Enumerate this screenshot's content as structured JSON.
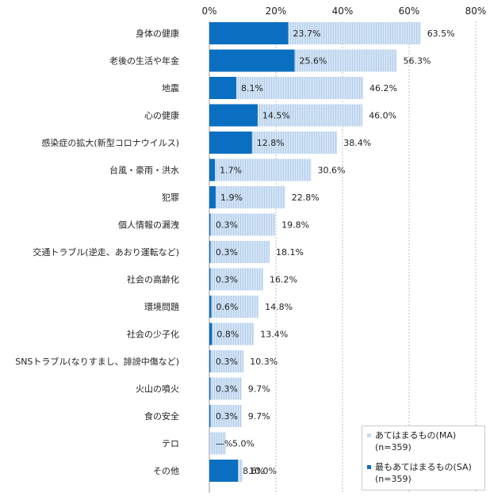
{
  "chart_data": {
    "type": "bar",
    "orientation": "horizontal",
    "xlim": [
      0,
      80
    ],
    "tick_labels": [
      "0%",
      "20%",
      "40%",
      "60%",
      "80%"
    ],
    "categories": [
      "身体の健康",
      "老後の生活や年金",
      "地震",
      "心の健康",
      "感染症の拡大(新型コロナウイルス)",
      "台風・豪雨・洪水",
      "犯罪",
      "個人情報の漏洩",
      "交通トラブル(逆走、あおり運転など)",
      "社会の高齢化",
      "環境問題",
      "社会の少子化",
      "SNSトラブル(なりすまし、誹謗中傷など)",
      "火山の噴火",
      "食の安全",
      "テロ",
      "その他"
    ],
    "series": [
      {
        "name": "あてはまるもの(MA) (n=359)",
        "color": "#c6dcf2",
        "values": [
          63.5,
          56.3,
          46.2,
          46.0,
          38.4,
          30.6,
          22.8,
          19.8,
          18.1,
          16.2,
          14.8,
          13.4,
          10.3,
          9.7,
          9.7,
          5.0,
          10.0
        ],
        "labels": [
          "63.5%",
          "56.3%",
          "46.2%",
          "46.0%",
          "38.4%",
          "30.6%",
          "22.8%",
          "19.8%",
          "18.1%",
          "16.2%",
          "14.8%",
          "13.4%",
          "10.3%",
          "9.7%",
          "9.7%",
          "5.0%",
          "10.0%"
        ]
      },
      {
        "name": "最もあてはまるもの(SA) (n=359)",
        "color": "#0a6fc0",
        "values": [
          23.7,
          25.6,
          8.1,
          14.5,
          12.8,
          1.7,
          1.9,
          0.3,
          0.3,
          0.3,
          0.6,
          0.8,
          0.3,
          0.3,
          0.3,
          0,
          8.6
        ],
        "labels": [
          "23.7%",
          "25.6%",
          "8.1%",
          "14.5%",
          "12.8%",
          "1.7%",
          "1.9%",
          "0.3%",
          "0.3%",
          "0.3%",
          "0.6%",
          "0.8%",
          "0.3%",
          "0.3%",
          "0.3%",
          "—%",
          "8.6%"
        ]
      }
    ],
    "legend": {
      "position": "bottom-right",
      "ma_label": "あてはまるもの(MA)(n=359)",
      "sa_label": "最もあてはまるもの(SA)(n=359)"
    }
  }
}
